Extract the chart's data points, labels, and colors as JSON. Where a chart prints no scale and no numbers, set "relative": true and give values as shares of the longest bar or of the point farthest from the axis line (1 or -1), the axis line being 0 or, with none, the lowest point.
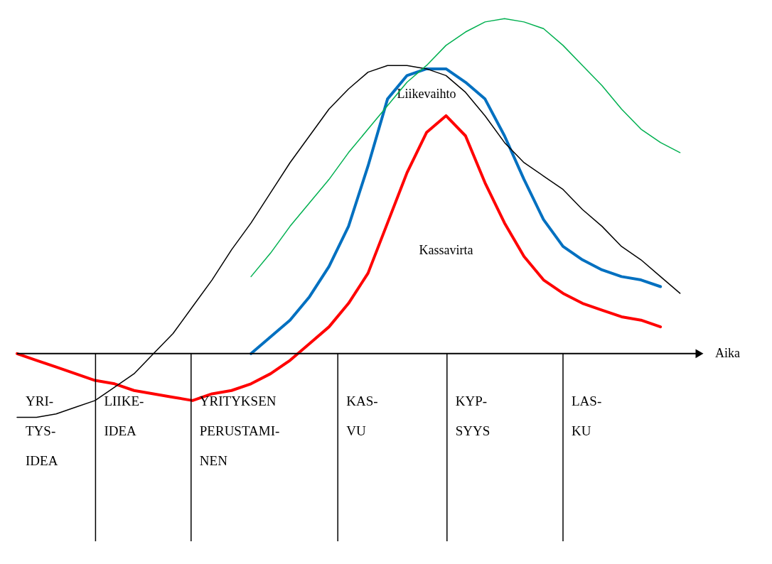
{
  "chart_data": {
    "type": "line",
    "relative": true,
    "xlabel": "Aika",
    "categories": [
      null,
      null,
      null,
      null,
      null,
      null,
      null,
      null,
      null,
      null,
      null,
      null,
      null,
      null,
      null,
      null,
      null,
      null,
      null,
      null,
      null,
      null,
      null,
      null,
      null,
      null,
      null,
      null,
      null,
      null,
      null,
      null,
      null,
      null,
      null,
      null
    ],
    "series": [
      {
        "name": "Kassavirta",
        "color": "#ff0000",
        "values": [
          0,
          -0.02,
          -0.04,
          -0.06,
          -0.08,
          -0.09,
          -0.11,
          -0.12,
          -0.13,
          -0.14,
          -0.12,
          -0.11,
          -0.09,
          -0.06,
          -0.02,
          0.03,
          0.08,
          0.15,
          0.24,
          0.39,
          0.54,
          0.66,
          0.71,
          0.65,
          0.51,
          0.39,
          0.29,
          0.22,
          0.18,
          0.15,
          0.13,
          0.11,
          0.1,
          0.08,
          null,
          null
        ]
      },
      {
        "name": "Liikevaihto",
        "color": "#0070c0",
        "values": [
          null,
          null,
          null,
          null,
          null,
          null,
          null,
          null,
          null,
          null,
          null,
          null,
          0,
          0.05,
          0.1,
          0.17,
          0.26,
          0.38,
          0.56,
          0.76,
          0.83,
          0.85,
          0.85,
          0.81,
          0.76,
          0.65,
          0.52,
          0.4,
          0.32,
          0.28,
          0.25,
          0.23,
          0.22,
          0.2,
          null,
          null
        ]
      },
      {
        "color": "#000000",
        "values": [
          -0.19,
          -0.19,
          -0.18,
          -0.16,
          -0.14,
          -0.1,
          -0.06,
          0.0,
          0.06,
          0.14,
          0.22,
          0.31,
          0.39,
          0.48,
          0.57,
          0.65,
          0.73,
          0.79,
          0.84,
          0.86,
          0.86,
          0.85,
          0.83,
          0.78,
          0.71,
          0.63,
          0.57,
          0.53,
          0.49,
          0.43,
          0.38,
          0.32,
          0.28,
          0.23,
          0.18,
          null
        ]
      },
      {
        "color": "#00b050",
        "values": [
          null,
          null,
          null,
          null,
          null,
          null,
          null,
          null,
          null,
          null,
          null,
          null,
          0.23,
          0.3,
          0.38,
          0.45,
          0.52,
          0.6,
          0.67,
          0.74,
          0.81,
          0.86,
          0.92,
          0.96,
          0.99,
          1,
          0.99,
          0.97,
          0.92,
          0.86,
          0.8,
          0.73,
          0.67,
          0.63,
          0.6,
          null
        ]
      }
    ],
    "annotations": [
      "YRI-\nTYS-\nIDEA",
      "LIIKE-\nIDEA",
      "YRITYKSEN\nPERUSTAMI-\nNEN",
      "KAS-\nVU",
      "KYP-\nSYYS",
      "LAS-\nKU"
    ]
  }
}
